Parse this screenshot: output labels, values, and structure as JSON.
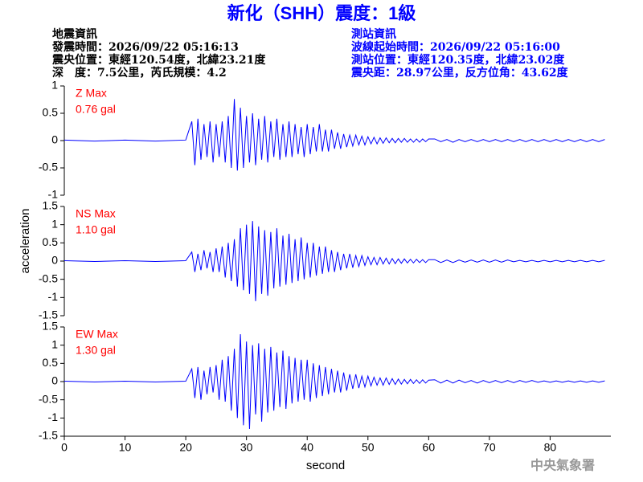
{
  "chart_data": {
    "type": "line",
    "title": "新化（SHH）震度：1級",
    "info_left": [
      "地震資訊",
      "發震時間：2026/09/22 05:16:13",
      "震央位置：東經120.54度，北緯23.21度",
      "深　度：7.5公里，芮氏規模：4.2"
    ],
    "info_right": [
      "測站資訊",
      "波線起始時間：2026/09/22 05:16:00",
      "測站位置：東經120.35度，北緯23.02度",
      "震央距：28.97公里，反方位角：43.62度"
    ],
    "agency": "中央氣象署",
    "xlabel": "second",
    "ylabel": "acceleration",
    "xlim": [
      0,
      90
    ],
    "xticks": [
      0,
      10,
      20,
      30,
      40,
      50,
      60,
      70,
      80
    ],
    "x": [
      0,
      5,
      10,
      15,
      20,
      21,
      21.5,
      22,
      22.5,
      23,
      23.5,
      24,
      24.5,
      25,
      25.5,
      26,
      26.5,
      27,
      27.5,
      28,
      28.5,
      29,
      29.5,
      30,
      30.5,
      31,
      31.5,
      32,
      32.5,
      33,
      33.5,
      34,
      34.5,
      35,
      35.5,
      36,
      36.5,
      37,
      37.5,
      38,
      38.5,
      39,
      39.5,
      40,
      40.5,
      41,
      41.5,
      42,
      42.5,
      43,
      43.5,
      44,
      44.5,
      45,
      45.5,
      46,
      46.5,
      47,
      47.5,
      48,
      48.5,
      49,
      49.5,
      50,
      50.5,
      51,
      51.5,
      52,
      52.5,
      53,
      53.5,
      54,
      54.5,
      55,
      55.5,
      56,
      56.5,
      57,
      57.5,
      58,
      58.5,
      59,
      59.5,
      60,
      61,
      62,
      63,
      64,
      65,
      66,
      67,
      68,
      69,
      70,
      71,
      72,
      73,
      74,
      75,
      76,
      77,
      78,
      79,
      80,
      81,
      82,
      83,
      84,
      85,
      86,
      87,
      88,
      89
    ],
    "series": [
      {
        "name": "Z Max",
        "max_label": "0.76 gal",
        "color": "#0000ff",
        "label_color": "#ff0000",
        "ylim": [
          -1,
          1
        ],
        "yticks": [
          -1,
          -0.5,
          0,
          0.5,
          1
        ],
        "values": [
          0.01,
          -0.01,
          0.01,
          -0.01,
          0.01,
          0.35,
          -0.45,
          0.4,
          -0.35,
          0.3,
          -0.3,
          0.35,
          -0.4,
          0.3,
          -0.3,
          0.35,
          -0.4,
          0.45,
          -0.5,
          0.76,
          -0.55,
          0.6,
          -0.5,
          0.45,
          -0.4,
          0.5,
          -0.45,
          0.4,
          -0.35,
          0.45,
          -0.4,
          0.35,
          -0.3,
          0.4,
          -0.35,
          0.3,
          -0.3,
          0.35,
          -0.3,
          0.3,
          -0.25,
          0.25,
          -0.3,
          0.3,
          -0.25,
          0.25,
          -0.2,
          0.3,
          -0.2,
          0.2,
          -0.2,
          0.2,
          -0.15,
          0.15,
          -0.15,
          0.12,
          -0.12,
          0.1,
          -0.1,
          0.1,
          -0.08,
          0.08,
          -0.08,
          0.07,
          -0.06,
          0.06,
          -0.06,
          0.05,
          -0.05,
          0.05,
          -0.04,
          0.04,
          -0.04,
          0.04,
          -0.03,
          0.04,
          -0.03,
          0.03,
          -0.03,
          0.03,
          -0.03,
          0.03,
          -0.02,
          0.03,
          0.03,
          -0.02,
          0.02,
          -0.03,
          0.02,
          -0.02,
          0.02,
          -0.02,
          0.02,
          -0.02,
          0.02,
          -0.02,
          0.02,
          -0.02,
          0.02,
          -0.02,
          0.02,
          -0.02,
          0.02,
          -0.02,
          0.02,
          -0.02,
          0.02,
          -0.02,
          0.02,
          -0.02,
          0.02,
          -0.02,
          0.02
        ]
      },
      {
        "name": "NS Max",
        "max_label": "1.10 gal",
        "color": "#0000ff",
        "label_color": "#ff0000",
        "ylim": [
          -1.5,
          1.5
        ],
        "yticks": [
          -1.5,
          -1,
          -0.5,
          0,
          0.5,
          1,
          1.5
        ],
        "values": [
          0.01,
          -0.01,
          0.01,
          -0.01,
          0.01,
          0.25,
          -0.3,
          0.2,
          -0.25,
          0.3,
          -0.2,
          0.25,
          -0.3,
          0.35,
          -0.3,
          0.4,
          -0.45,
          0.5,
          -0.55,
          0.6,
          -0.7,
          0.9,
          -0.8,
          1.0,
          -0.9,
          1.1,
          -1.1,
          0.95,
          -0.9,
          0.85,
          -0.95,
          0.8,
          -0.75,
          0.9,
          -0.7,
          0.7,
          -0.65,
          0.75,
          -0.6,
          0.6,
          -0.55,
          0.65,
          -0.5,
          0.5,
          -0.45,
          0.5,
          -0.4,
          0.4,
          -0.35,
          0.4,
          -0.3,
          0.3,
          -0.3,
          0.25,
          -0.25,
          0.2,
          -0.2,
          0.2,
          -0.18,
          0.15,
          -0.15,
          0.15,
          -0.12,
          0.12,
          -0.1,
          0.1,
          -0.1,
          0.1,
          -0.08,
          0.08,
          -0.08,
          0.07,
          -0.07,
          0.06,
          -0.06,
          0.06,
          -0.05,
          0.05,
          -0.05,
          0.05,
          -0.04,
          0.04,
          -0.04,
          0.04,
          0.04,
          -0.04,
          0.03,
          -0.04,
          0.03,
          -0.03,
          0.03,
          -0.03,
          0.03,
          -0.03,
          0.03,
          -0.03,
          0.03,
          -0.02,
          0.02,
          -0.02,
          0.02,
          -0.02,
          0.02,
          -0.02,
          0.02,
          -0.02,
          0.02,
          -0.02,
          0.02,
          -0.02,
          0.02,
          -0.02,
          0.02
        ]
      },
      {
        "name": "EW Max",
        "max_label": "1.30 gal",
        "color": "#0000ff",
        "label_color": "#ff0000",
        "ylim": [
          -1.5,
          1.5
        ],
        "yticks": [
          -1.5,
          -1,
          -0.5,
          0,
          0.5,
          1,
          1.5
        ],
        "values": [
          0.01,
          -0.01,
          0.01,
          -0.01,
          0.01,
          0.35,
          -0.45,
          0.4,
          -0.5,
          0.3,
          -0.35,
          0.4,
          -0.3,
          0.45,
          -0.5,
          0.6,
          -0.55,
          0.7,
          -0.8,
          0.9,
          -1.0,
          1.3,
          -1.2,
          1.1,
          -1.3,
          1.0,
          -0.9,
          1.05,
          -1.1,
          0.9,
          -0.85,
          0.95,
          -0.8,
          0.8,
          -0.7,
          0.85,
          -0.75,
          0.7,
          -0.6,
          0.65,
          -0.55,
          0.6,
          -0.5,
          0.6,
          -0.55,
          0.5,
          -0.45,
          0.45,
          -0.4,
          0.4,
          -0.35,
          0.35,
          -0.3,
          0.3,
          -0.3,
          0.25,
          -0.25,
          0.2,
          -0.2,
          0.2,
          -0.18,
          0.15,
          -0.15,
          0.15,
          -0.12,
          0.12,
          -0.1,
          0.1,
          -0.1,
          0.1,
          -0.08,
          0.08,
          -0.08,
          0.07,
          -0.07,
          0.06,
          -0.06,
          0.06,
          -0.05,
          0.05,
          -0.05,
          0.05,
          -0.04,
          0.04,
          0.05,
          -0.04,
          0.04,
          -0.04,
          0.04,
          -0.03,
          0.03,
          -0.04,
          0.03,
          -0.03,
          0.03,
          -0.03,
          0.03,
          -0.03,
          0.03,
          -0.02,
          0.03,
          -0.02,
          0.02,
          -0.02,
          0.02,
          -0.02,
          0.02,
          -0.02,
          0.02,
          -0.02,
          0.02,
          -0.02,
          0.02
        ]
      }
    ]
  }
}
